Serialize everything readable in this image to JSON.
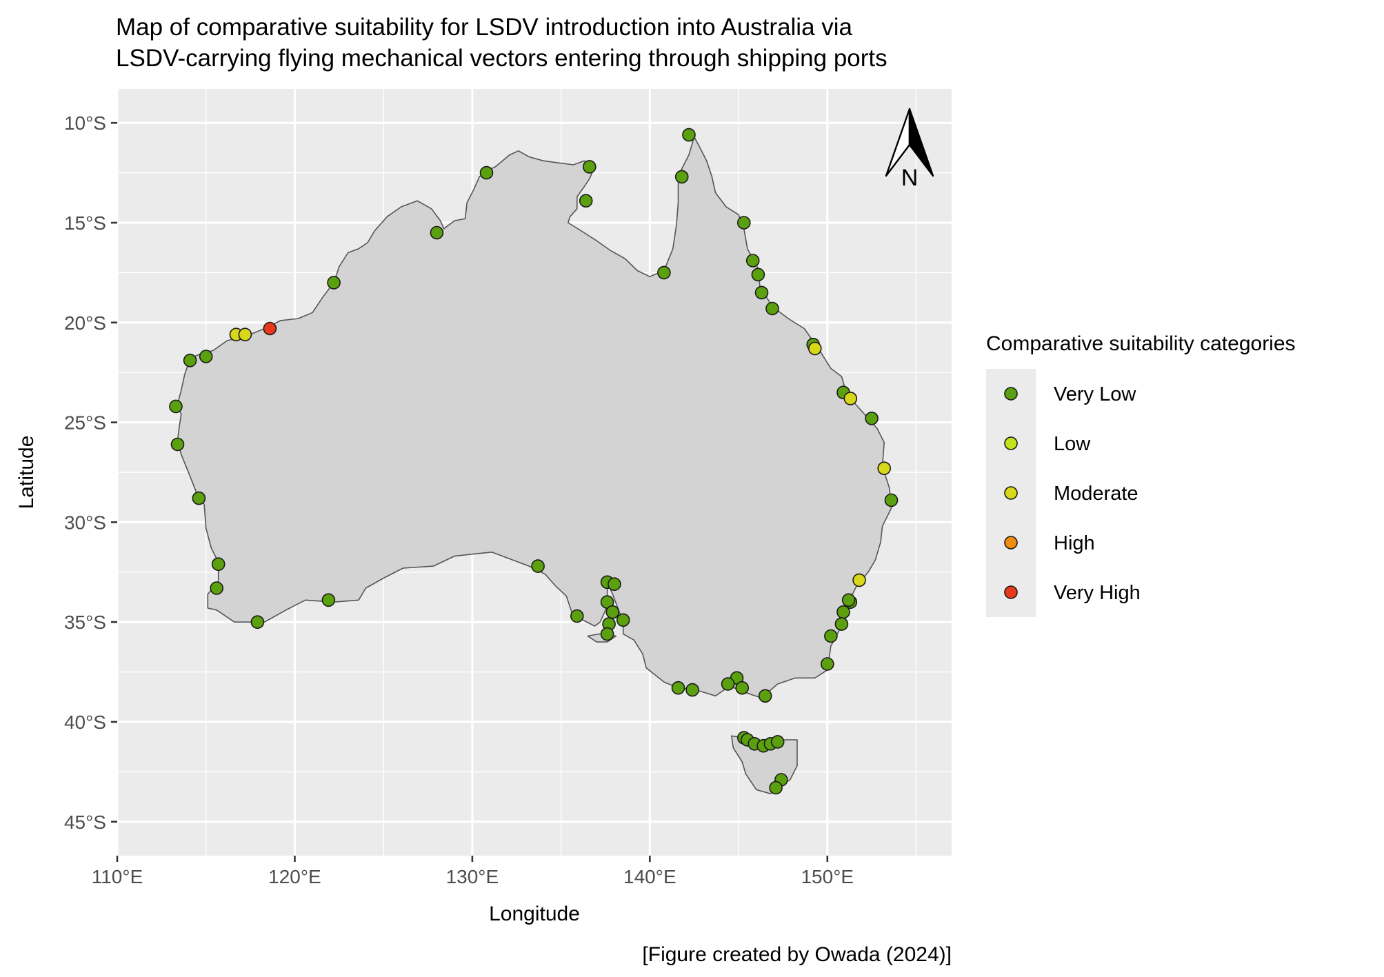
{
  "chart_data": {
    "type": "scatter",
    "title_lines": [
      "Map of comparative suitability for LSDV introduction into Australia via",
      "LSDV-carrying flying mechanical vectors entering through shipping ports"
    ],
    "xlabel": "Longitude",
    "ylabel": "Latitude",
    "caption": "[Figure created by Owada (2024)]",
    "xlim": [
      110,
      157
    ],
    "ylim": [
      -46.7,
      -8.3
    ],
    "x_ticks": [
      {
        "value": 110,
        "label": "110°E"
      },
      {
        "value": 120,
        "label": "120°E"
      },
      {
        "value": 130,
        "label": "130°E"
      },
      {
        "value": 140,
        "label": "140°E"
      },
      {
        "value": 150,
        "label": "150°E"
      }
    ],
    "y_ticks": [
      {
        "value": -10,
        "label": "10°S"
      },
      {
        "value": -15,
        "label": "15°S"
      },
      {
        "value": -20,
        "label": "20°S"
      },
      {
        "value": -25,
        "label": "25°S"
      },
      {
        "value": -30,
        "label": "30°S"
      },
      {
        "value": -35,
        "label": "35°S"
      },
      {
        "value": -40,
        "label": "40°S"
      },
      {
        "value": -45,
        "label": "45°S"
      }
    ],
    "grid": true,
    "north_arrow": {
      "label": "N",
      "placement": "top-right"
    },
    "legend": {
      "title": "Comparative suitability categories",
      "placement": "right",
      "categories": [
        {
          "name": "Very Low",
          "color": "#5ba00e"
        },
        {
          "name": "Low",
          "color": "#c4e21c"
        },
        {
          "name": "Moderate",
          "color": "#d8d81a"
        },
        {
          "name": "High",
          "color": "#f08c10"
        },
        {
          "name": "Very High",
          "color": "#e8391b"
        }
      ]
    },
    "ports": [
      {
        "lon": 142.2,
        "lat": -10.6,
        "category": "Very Low"
      },
      {
        "lon": 136.6,
        "lat": -12.2,
        "category": "Very Low"
      },
      {
        "lon": 130.8,
        "lat": -12.5,
        "category": "Very Low"
      },
      {
        "lon": 141.8,
        "lat": -12.7,
        "category": "Very Low"
      },
      {
        "lon": 136.4,
        "lat": -13.9,
        "category": "Very Low"
      },
      {
        "lon": 145.3,
        "lat": -15.0,
        "category": "Very Low"
      },
      {
        "lon": 128.0,
        "lat": -15.5,
        "category": "Very Low"
      },
      {
        "lon": 145.8,
        "lat": -16.9,
        "category": "Very Low"
      },
      {
        "lon": 146.1,
        "lat": -17.6,
        "category": "Very Low"
      },
      {
        "lon": 140.8,
        "lat": -17.5,
        "category": "Very Low"
      },
      {
        "lon": 122.2,
        "lat": -18.0,
        "category": "Very Low"
      },
      {
        "lon": 146.3,
        "lat": -18.5,
        "category": "Very Low"
      },
      {
        "lon": 146.9,
        "lat": -19.3,
        "category": "Very Low"
      },
      {
        "lon": 118.6,
        "lat": -20.3,
        "category": "Very High"
      },
      {
        "lon": 116.7,
        "lat": -20.6,
        "category": "Moderate"
      },
      {
        "lon": 117.2,
        "lat": -20.6,
        "category": "Moderate"
      },
      {
        "lon": 149.2,
        "lat": -21.1,
        "category": "Very Low"
      },
      {
        "lon": 149.3,
        "lat": -21.3,
        "category": "Moderate"
      },
      {
        "lon": 115.0,
        "lat": -21.7,
        "category": "Very Low"
      },
      {
        "lon": 114.1,
        "lat": -21.9,
        "category": "Very Low"
      },
      {
        "lon": 150.9,
        "lat": -23.5,
        "category": "Very Low"
      },
      {
        "lon": 151.3,
        "lat": -23.8,
        "category": "Moderate"
      },
      {
        "lon": 113.3,
        "lat": -24.2,
        "category": "Very Low"
      },
      {
        "lon": 152.5,
        "lat": -24.8,
        "category": "Very Low"
      },
      {
        "lon": 113.4,
        "lat": -26.1,
        "category": "Very Low"
      },
      {
        "lon": 153.2,
        "lat": -27.3,
        "category": "Moderate"
      },
      {
        "lon": 114.6,
        "lat": -28.8,
        "category": "Very Low"
      },
      {
        "lon": 153.6,
        "lat": -28.9,
        "category": "Very Low"
      },
      {
        "lon": 115.7,
        "lat": -32.1,
        "category": "Very Low"
      },
      {
        "lon": 133.7,
        "lat": -32.2,
        "category": "Very Low"
      },
      {
        "lon": 151.8,
        "lat": -32.9,
        "category": "Moderate"
      },
      {
        "lon": 137.6,
        "lat": -33.0,
        "category": "Very Low"
      },
      {
        "lon": 138.0,
        "lat": -33.1,
        "category": "Very Low"
      },
      {
        "lon": 115.6,
        "lat": -33.3,
        "category": "Very Low"
      },
      {
        "lon": 121.9,
        "lat": -33.9,
        "category": "Very Low"
      },
      {
        "lon": 137.6,
        "lat": -34.0,
        "category": "Very Low"
      },
      {
        "lon": 151.3,
        "lat": -34.0,
        "category": "Very Low"
      },
      {
        "lon": 151.2,
        "lat": -33.9,
        "category": "Very Low"
      },
      {
        "lon": 137.9,
        "lat": -34.5,
        "category": "Very Low"
      },
      {
        "lon": 150.9,
        "lat": -34.5,
        "category": "Very Low"
      },
      {
        "lon": 135.9,
        "lat": -34.7,
        "category": "Very Low"
      },
      {
        "lon": 138.5,
        "lat": -34.9,
        "category": "Very Low"
      },
      {
        "lon": 117.9,
        "lat": -35.0,
        "category": "Very Low"
      },
      {
        "lon": 137.7,
        "lat": -35.1,
        "category": "Very Low"
      },
      {
        "lon": 150.8,
        "lat": -35.1,
        "category": "Very Low"
      },
      {
        "lon": 137.6,
        "lat": -35.6,
        "category": "Very Low"
      },
      {
        "lon": 150.2,
        "lat": -35.7,
        "category": "Very Low"
      },
      {
        "lon": 150.0,
        "lat": -37.1,
        "category": "Very Low"
      },
      {
        "lon": 144.9,
        "lat": -37.8,
        "category": "Very Low"
      },
      {
        "lon": 144.4,
        "lat": -38.1,
        "category": "Very Low"
      },
      {
        "lon": 141.6,
        "lat": -38.3,
        "category": "Very Low"
      },
      {
        "lon": 145.2,
        "lat": -38.3,
        "category": "Very Low"
      },
      {
        "lon": 142.4,
        "lat": -38.4,
        "category": "Very Low"
      },
      {
        "lon": 146.5,
        "lat": -38.7,
        "category": "Very Low"
      },
      {
        "lon": 145.3,
        "lat": -40.8,
        "category": "Very Low"
      },
      {
        "lon": 145.5,
        "lat": -40.9,
        "category": "Very Low"
      },
      {
        "lon": 145.9,
        "lat": -41.1,
        "category": "Very Low"
      },
      {
        "lon": 146.4,
        "lat": -41.2,
        "category": "Very Low"
      },
      {
        "lon": 146.8,
        "lat": -41.1,
        "category": "Very Low"
      },
      {
        "lon": 147.2,
        "lat": -41.0,
        "category": "Very Low"
      },
      {
        "lon": 147.4,
        "lat": -42.9,
        "category": "Very Low"
      },
      {
        "lon": 147.1,
        "lat": -43.3,
        "category": "Very Low"
      }
    ]
  }
}
